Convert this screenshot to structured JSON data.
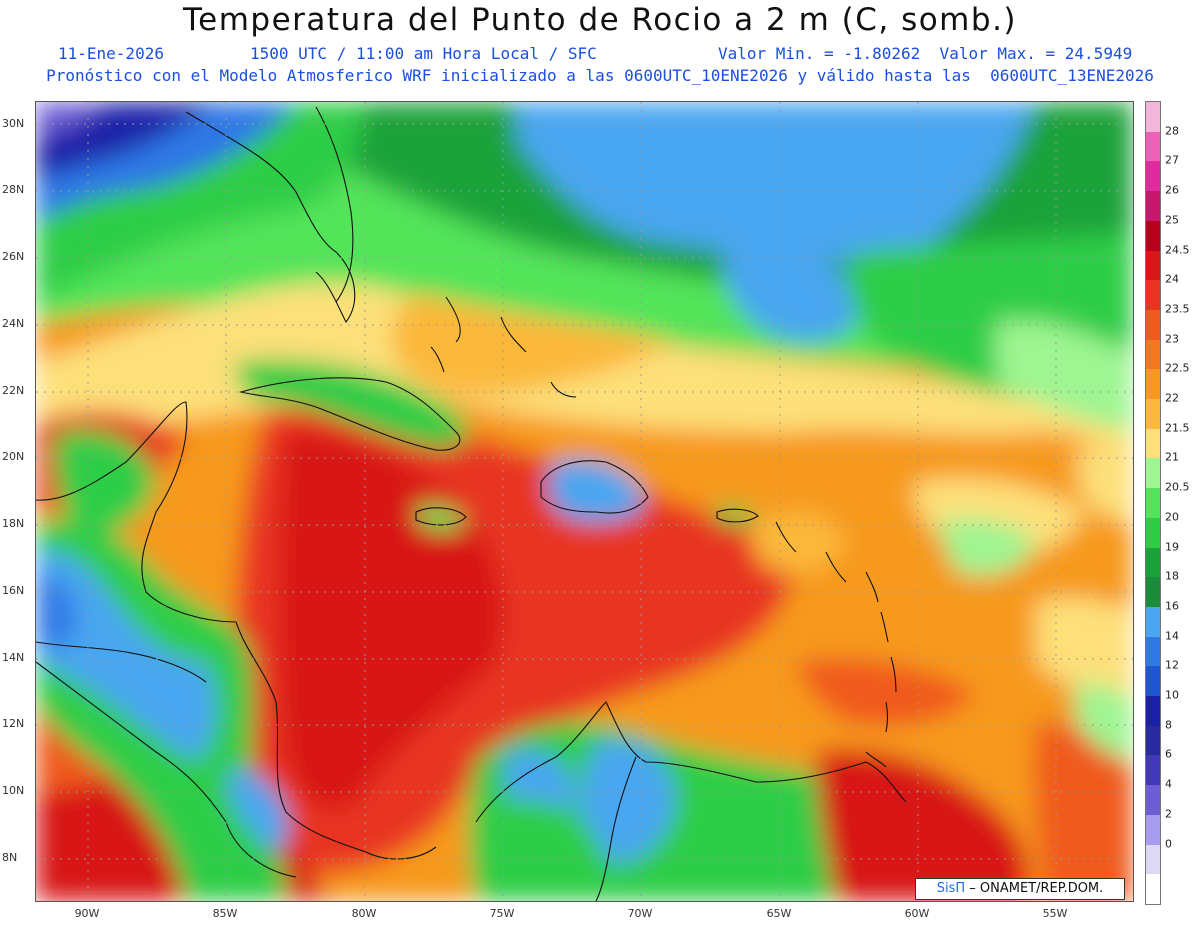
{
  "header": {
    "title": "Temperatura del Punto de Rocio a 2 m (C, somb.)",
    "date": "11-Ene-2026",
    "time": "1500 UTC / 11:00 am Hora Local / SFC",
    "value_range": "Valor Min. = -1.80262  Valor Max. = 24.5949",
    "model_info": "Pronóstico con el Modelo Atmosferico WRF inicializado a las 0600UTC_10ENE2026 y válido hasta las  0600UTC_13ENE2026"
  },
  "map": {
    "lat_labels": [
      "30N",
      "28N",
      "26N",
      "24N",
      "22N",
      "20N",
      "18N",
      "16N",
      "14N",
      "12N",
      "10N",
      "8N"
    ],
    "lon_labels": [
      "90W",
      "85W",
      "80W",
      "75W",
      "70W",
      "65W",
      "60W",
      "55W"
    ],
    "grid": "dotted"
  },
  "colorbar": {
    "ticks": [
      "28",
      "27",
      "26",
      "25",
      "24.5",
      "24",
      "23.5",
      "23",
      "22.5",
      "22",
      "21.5",
      "21",
      "20.5",
      "20",
      "19",
      "18",
      "16",
      "14",
      "12",
      "10",
      "8",
      "6",
      "4",
      "2",
      "0"
    ],
    "colors": [
      "#f4b6d8",
      "#ee5fb7",
      "#e02a9e",
      "#c8156e",
      "#b8001a",
      "#d81818",
      "#e83420",
      "#f05a1e",
      "#f5781e",
      "#f7991e",
      "#fbb83a",
      "#fde07a",
      "#9ef592",
      "#52e45a",
      "#2ecd46",
      "#1aa23a",
      "#1a8c3a",
      "#4aa6f0",
      "#2f78e6",
      "#1f55d2",
      "#1a20a8",
      "#2a2aa0",
      "#4238bb",
      "#6e5ed6",
      "#a79cee",
      "#dcd8f6",
      "#ffffff"
    ]
  },
  "credit": {
    "logo_text": "SisΠ",
    "text": "– ONAMET/REP.DOM."
  }
}
